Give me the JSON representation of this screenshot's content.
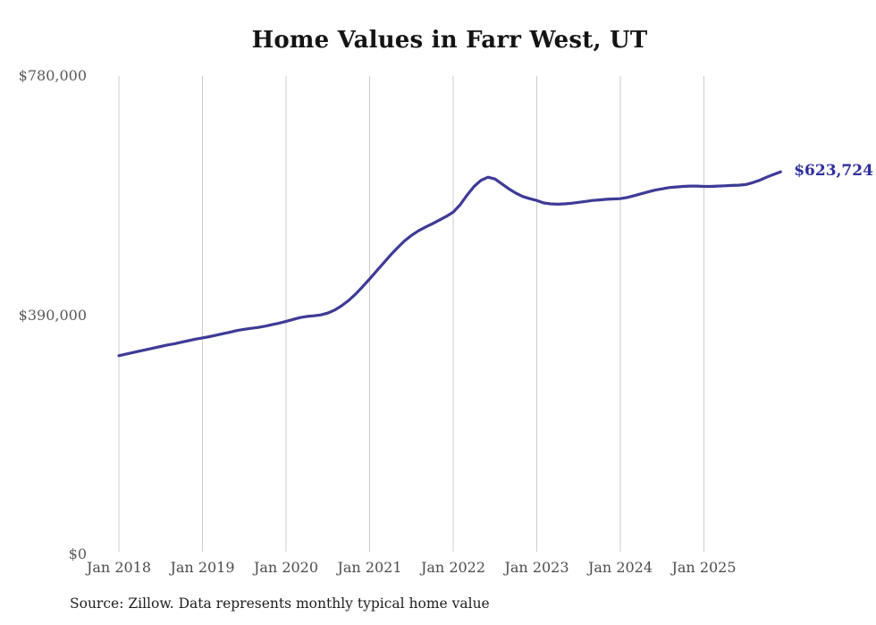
{
  "chart_data": {
    "type": "line",
    "title": "Home Values in Farr West, UT",
    "x_start": "2018-01",
    "x_interval": "monthly",
    "x_ticks": [
      "Jan 2018",
      "Jan 2019",
      "Jan 2020",
      "Jan 2021",
      "Jan 2022",
      "Jan 2023",
      "Jan 2024",
      "Jan 2025"
    ],
    "y_ticks": [
      {
        "label": "$0",
        "value": 0
      },
      {
        "label": "$390,000",
        "value": 390000
      },
      {
        "label": "$780,000",
        "value": 780000
      }
    ],
    "ylim": [
      0,
      780000
    ],
    "grid": "vertical-only",
    "legend": "none",
    "series": [
      {
        "name": "Typical home value",
        "values": [
          324000,
          326500,
          329000,
          331500,
          334000,
          336500,
          339000,
          341500,
          343500,
          346000,
          348500,
          351000,
          353000,
          355000,
          357500,
          360000,
          362500,
          365000,
          367000,
          368500,
          370000,
          372000,
          374500,
          377000,
          380000,
          383000,
          386000,
          388000,
          389000,
          390500,
          393500,
          398500,
          405500,
          414000,
          424500,
          436500,
          449000,
          462000,
          475000,
          488000,
          500000,
          511000,
          520000,
          527500,
          533500,
          539000,
          545000,
          551000,
          558000,
          570000,
          586000,
          600000,
          610000,
          615000,
          612000,
          604000,
          596000,
          589000,
          583500,
          580000,
          577000,
          573000,
          571500,
          571000,
          571500,
          572500,
          574000,
          575500,
          577000,
          578000,
          579000,
          579500,
          580000,
          582000,
          585000,
          588000,
          591000,
          594000,
          596000,
          598000,
          599000,
          600000,
          600500,
          600500,
          600000,
          600000,
          600500,
          601000,
          601500,
          602000,
          603000,
          606000,
          610000,
          615000,
          619500,
          623724
        ]
      }
    ],
    "end_label": "$623,724",
    "line_color": "#3e3b97",
    "end_label_color": "#2e2e9e",
    "gridline_color": "#cccccc"
  },
  "source_note": "Source: Zillow. Data represents monthly typical home value"
}
